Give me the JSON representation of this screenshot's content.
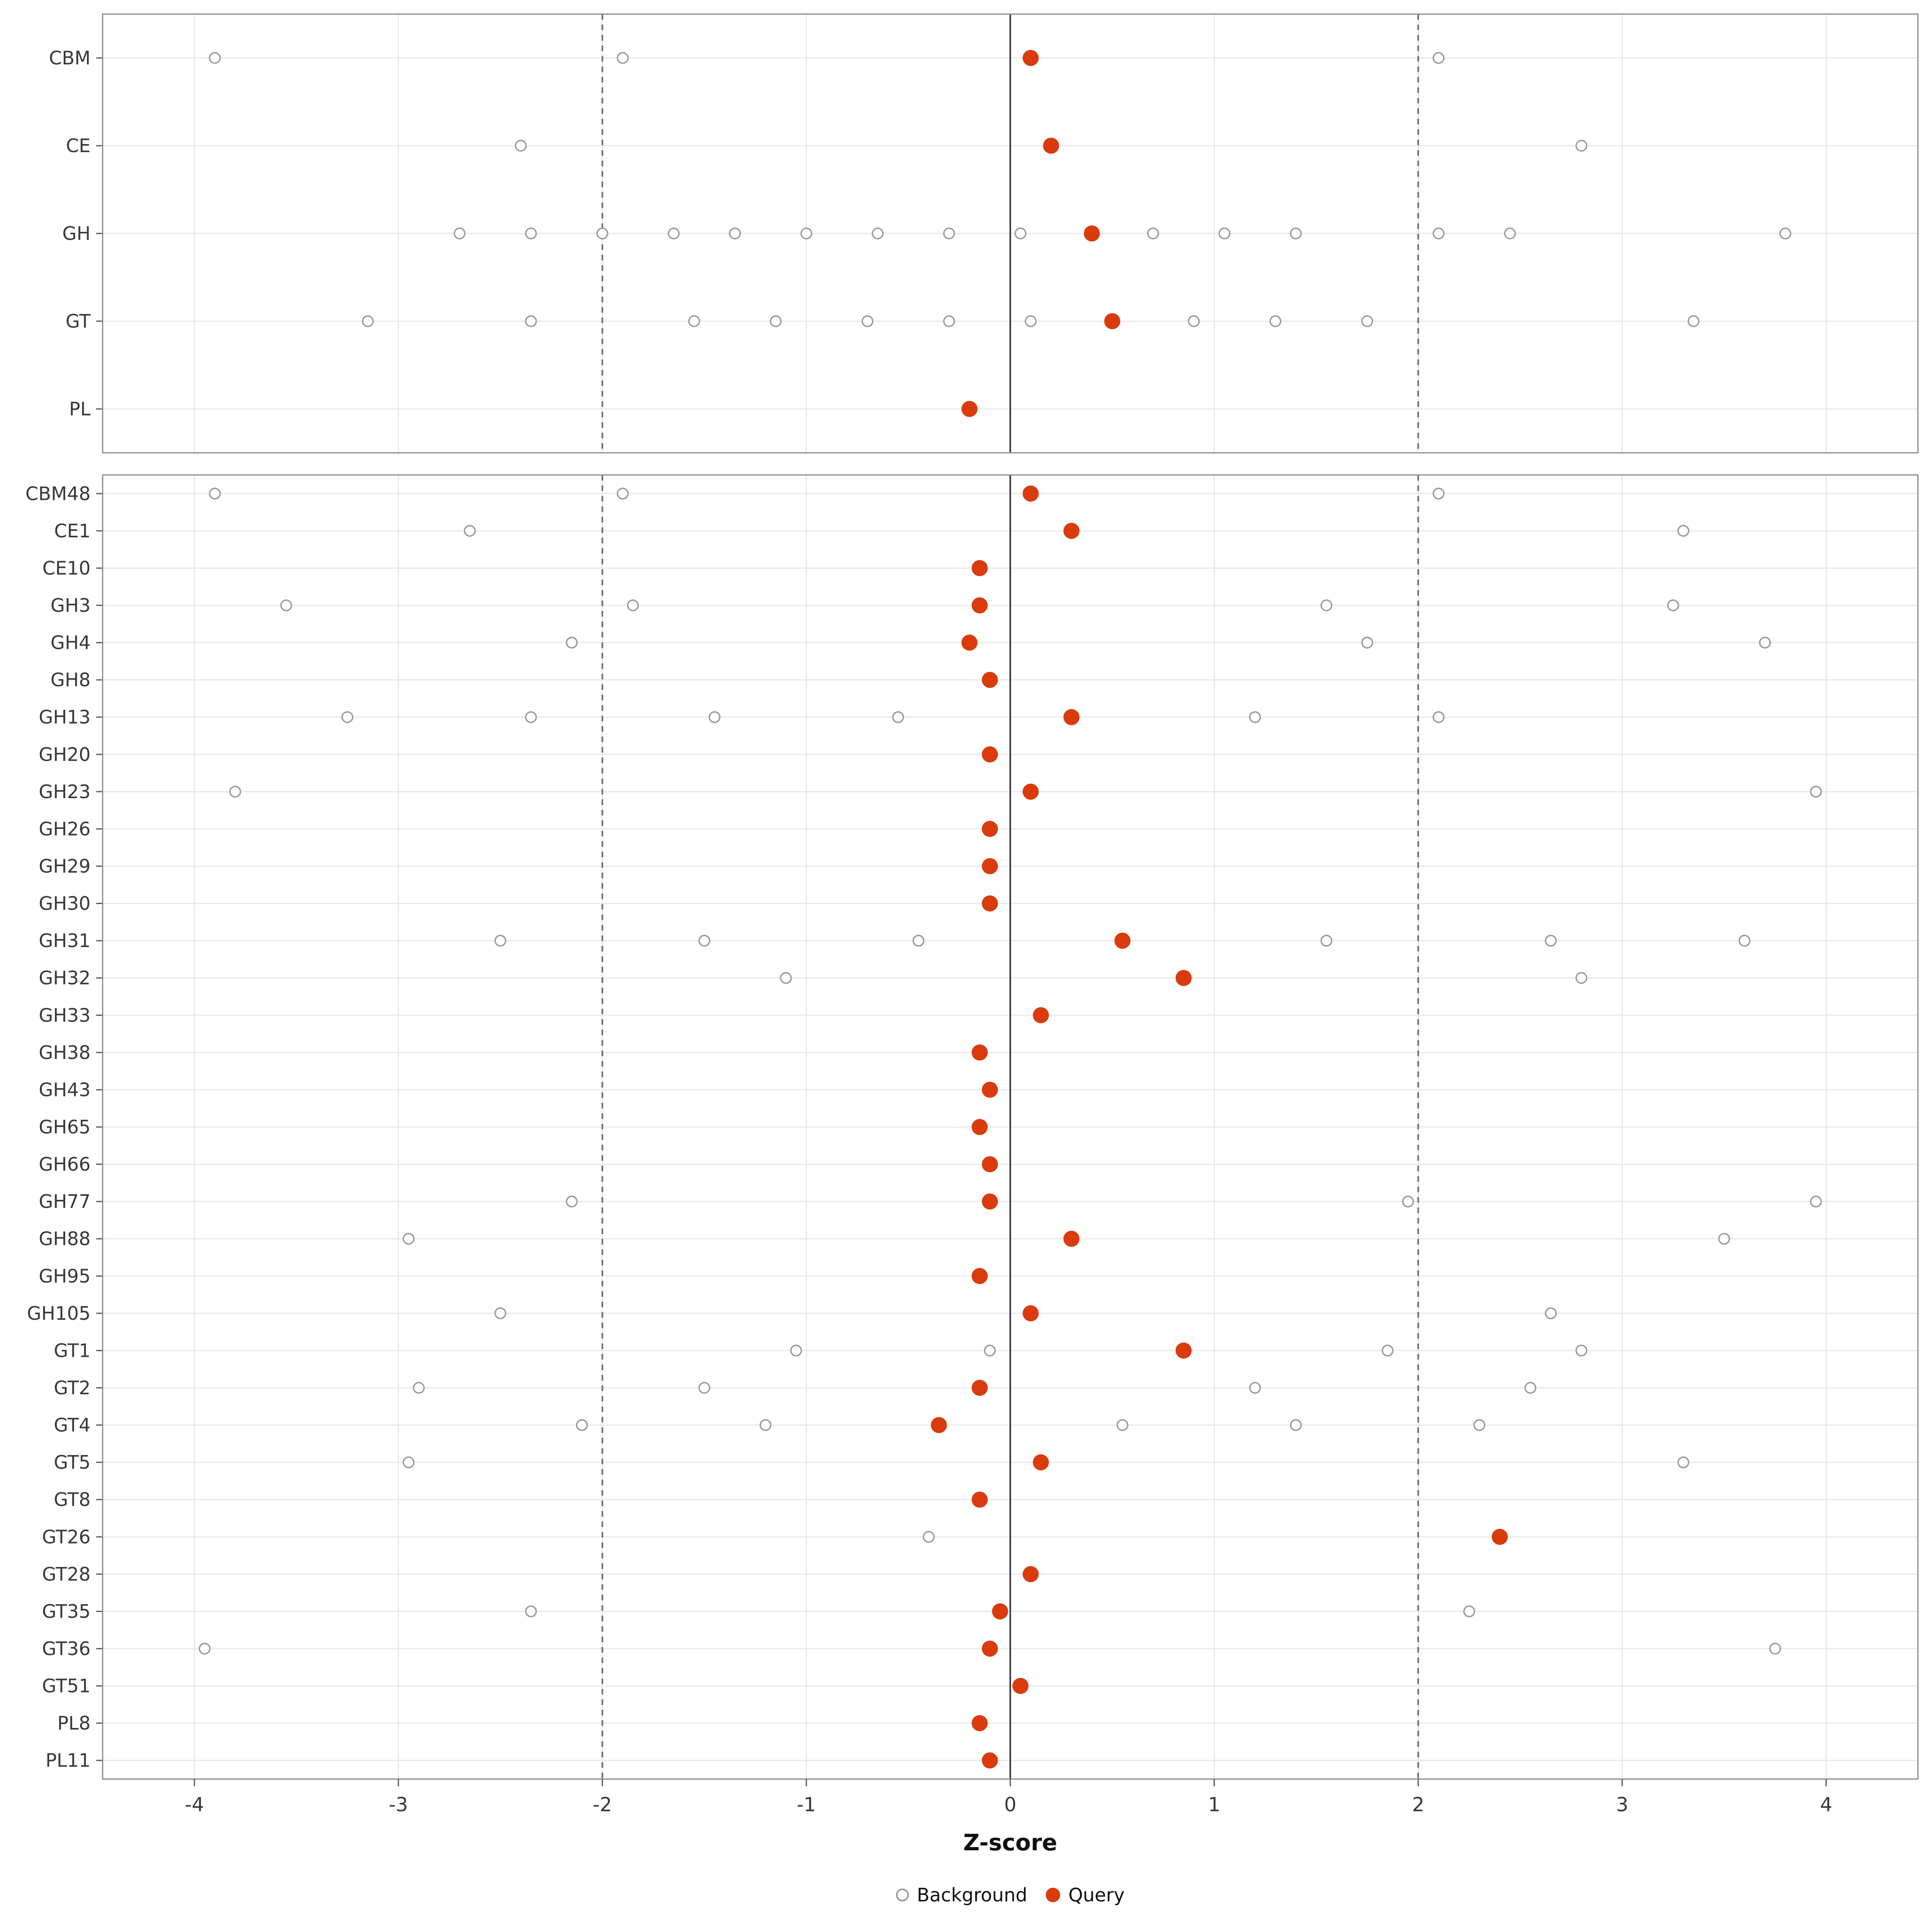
{
  "chart_data": {
    "type": "scatter",
    "title": "",
    "xlabel": "Z-score",
    "ylabel": "",
    "xlim": [
      -4.45,
      4.45
    ],
    "x_ticks": [
      -4,
      -3,
      -2,
      -1,
      0,
      1,
      2,
      3,
      4
    ],
    "grid": true,
    "legend_position": "bottom",
    "vlines": {
      "solid": [
        0
      ],
      "dashed": [
        -2,
        2
      ]
    },
    "legend": [
      {
        "label": "Background",
        "style": "open-circle"
      },
      {
        "label": "Query",
        "style": "filled-circle"
      }
    ],
    "colors": {
      "query": "#d93b0d",
      "background_stroke": "#9a9a9a",
      "grid": "#e8e8e8",
      "panel_border": "#8c8c8c",
      "ref_dashed": "#6b6b6b",
      "ref_solid": "#3c3c3c",
      "axis_text": "#383838",
      "tick_mark": "#555555"
    },
    "panels": [
      {
        "name": "summary",
        "rows": [
          {
            "label": "CBM",
            "background": [
              -3.9,
              -1.9,
              2.1
            ],
            "query": 0.1
          },
          {
            "label": "CE",
            "background": [
              -2.4,
              2.8
            ],
            "query": 0.2
          },
          {
            "label": "GH",
            "background": [
              -2.7,
              -2.35,
              -2.0,
              -1.65,
              -1.35,
              -1.0,
              -0.65,
              -0.3,
              0.05,
              0.7,
              1.05,
              1.4,
              2.1,
              2.45,
              3.8
            ],
            "query": 0.4
          },
          {
            "label": "GT",
            "background": [
              -3.15,
              -2.35,
              -1.55,
              -1.15,
              -0.7,
              -0.3,
              0.1,
              0.9,
              1.3,
              1.75,
              3.35
            ],
            "query": 0.5
          },
          {
            "label": "PL",
            "background": [],
            "query": -0.2
          }
        ]
      },
      {
        "name": "families",
        "rows": [
          {
            "label": "CBM48",
            "background": [
              -3.9,
              -1.9,
              2.1
            ],
            "query": 0.1
          },
          {
            "label": "CE1",
            "background": [
              -2.65,
              3.3
            ],
            "query": 0.3
          },
          {
            "label": "CE10",
            "background": [],
            "query": -0.15
          },
          {
            "label": "GH3",
            "background": [
              -3.55,
              -1.85,
              1.55,
              3.25
            ],
            "query": -0.15
          },
          {
            "label": "GH4",
            "background": [
              -2.15,
              1.75,
              3.7
            ],
            "query": -0.2
          },
          {
            "label": "GH8",
            "background": [],
            "query": -0.1
          },
          {
            "label": "GH13",
            "background": [
              -3.25,
              -2.35,
              -1.45,
              -0.55,
              1.2,
              2.1
            ],
            "query": 0.3
          },
          {
            "label": "GH20",
            "background": [],
            "query": -0.1
          },
          {
            "label": "GH23",
            "background": [
              -3.8,
              3.95
            ],
            "query": 0.1
          },
          {
            "label": "GH26",
            "background": [],
            "query": -0.1
          },
          {
            "label": "GH29",
            "background": [],
            "query": -0.1
          },
          {
            "label": "GH30",
            "background": [],
            "query": -0.1
          },
          {
            "label": "GH31",
            "background": [
              -2.5,
              -1.5,
              -0.45,
              1.55,
              2.65,
              3.6
            ],
            "query": 0.55
          },
          {
            "label": "GH32",
            "background": [
              -1.1,
              2.8
            ],
            "query": 0.85
          },
          {
            "label": "GH33",
            "background": [],
            "query": 0.15
          },
          {
            "label": "GH38",
            "background": [],
            "query": -0.15
          },
          {
            "label": "GH43",
            "background": [],
            "query": -0.1
          },
          {
            "label": "GH65",
            "background": [],
            "query": -0.15
          },
          {
            "label": "GH66",
            "background": [],
            "query": -0.1
          },
          {
            "label": "GH77",
            "background": [
              -2.15,
              1.95,
              3.95
            ],
            "query": -0.1
          },
          {
            "label": "GH88",
            "background": [
              -2.95,
              3.5
            ],
            "query": 0.3
          },
          {
            "label": "GH95",
            "background": [],
            "query": -0.15
          },
          {
            "label": "GH105",
            "background": [
              -2.5,
              2.65
            ],
            "query": 0.1
          },
          {
            "label": "GT1",
            "background": [
              -1.05,
              -0.1,
              1.85,
              2.8
            ],
            "query": 0.85
          },
          {
            "label": "GT2",
            "background": [
              -2.9,
              -1.5,
              1.2,
              2.55
            ],
            "query": -0.15
          },
          {
            "label": "GT4",
            "background": [
              -2.1,
              -1.2,
              0.55,
              1.4,
              2.3
            ],
            "query": -0.35
          },
          {
            "label": "GT5",
            "background": [
              -2.95,
              3.3
            ],
            "query": 0.15
          },
          {
            "label": "GT8",
            "background": [],
            "query": -0.15
          },
          {
            "label": "GT26",
            "background": [
              -0.4
            ],
            "query": 2.4
          },
          {
            "label": "GT28",
            "background": [],
            "query": 0.1
          },
          {
            "label": "GT35",
            "background": [
              -2.35,
              2.25
            ],
            "query": -0.05
          },
          {
            "label": "GT36",
            "background": [
              -3.95,
              3.75
            ],
            "query": -0.1
          },
          {
            "label": "GT51",
            "background": [],
            "query": 0.05
          },
          {
            "label": "PL8",
            "background": [],
            "query": -0.15
          },
          {
            "label": "PL11",
            "background": [],
            "query": -0.1
          }
        ]
      }
    ]
  }
}
